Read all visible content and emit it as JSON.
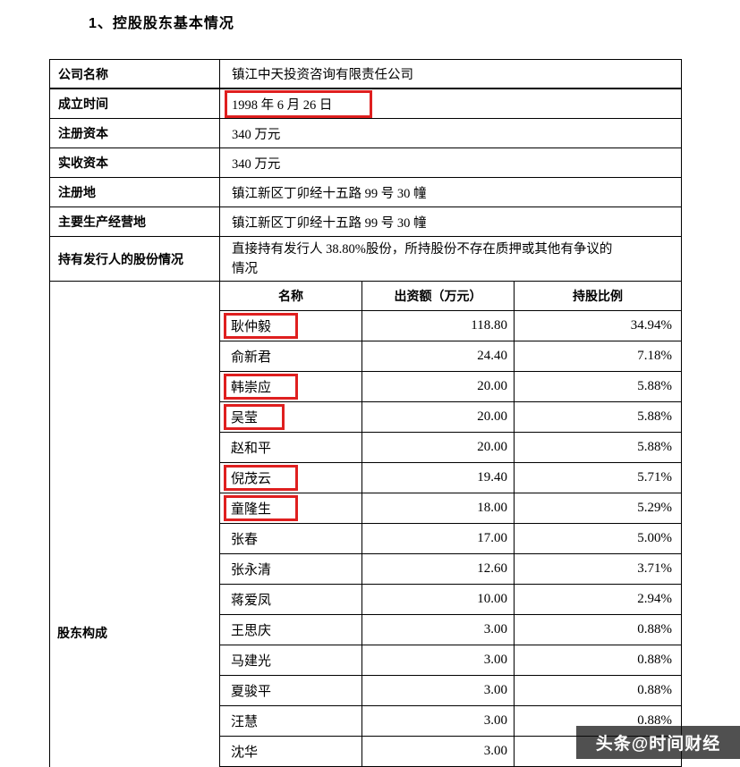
{
  "page": {
    "title": "1、控股股东基本情况"
  },
  "info_rows": [
    {
      "label": "公司名称",
      "value": "镇江中天投资咨询有限责任公司",
      "highlight": false
    },
    {
      "label": "成立时间",
      "value": "1998 年 6 月 26 日",
      "highlight": true
    },
    {
      "label": "注册资本",
      "value": "340 万元",
      "highlight": false
    },
    {
      "label": "实收资本",
      "value": "340 万元",
      "highlight": false
    },
    {
      "label": "注册地",
      "value": "镇江新区丁卯经十五路 99 号 30 幢",
      "highlight": false
    },
    {
      "label": "主要生产经营地",
      "value": "镇江新区丁卯经十五路 99 号 30 幢",
      "highlight": false
    },
    {
      "label": "持有发行人的股份情况",
      "value": "直接持有发行人 38.80%股份，所持股份不存在质押或其他有争议的情况",
      "highlight": false
    }
  ],
  "shareholder_table": {
    "row_label": "股东构成",
    "headers": [
      "名称",
      "出资额（万元）",
      "持股比例"
    ],
    "rows": [
      {
        "name": "耿仲毅",
        "amount": "118.80",
        "ratio": "34.94%",
        "highlight": true
      },
      {
        "name": "俞新君",
        "amount": "24.40",
        "ratio": "7.18%",
        "highlight": false
      },
      {
        "name": "韩崇应",
        "amount": "20.00",
        "ratio": "5.88%",
        "highlight": true
      },
      {
        "name": "吴莹",
        "amount": "20.00",
        "ratio": "5.88%",
        "highlight": true
      },
      {
        "name": "赵和平",
        "amount": "20.00",
        "ratio": "5.88%",
        "highlight": false
      },
      {
        "name": "倪茂云",
        "amount": "19.40",
        "ratio": "5.71%",
        "highlight": true
      },
      {
        "name": "童隆生",
        "amount": "18.00",
        "ratio": "5.29%",
        "highlight": true
      },
      {
        "name": "张春",
        "amount": "17.00",
        "ratio": "5.00%",
        "highlight": false
      },
      {
        "name": "张永清",
        "amount": "12.60",
        "ratio": "3.71%",
        "highlight": false
      },
      {
        "name": "蒋爱凤",
        "amount": "10.00",
        "ratio": "2.94%",
        "highlight": false
      },
      {
        "name": "王思庆",
        "amount": "3.00",
        "ratio": "0.88%",
        "highlight": false
      },
      {
        "name": "马建光",
        "amount": "3.00",
        "ratio": "0.88%",
        "highlight": false
      },
      {
        "name": "夏骏平",
        "amount": "3.00",
        "ratio": "0.88%",
        "highlight": false
      },
      {
        "name": "汪慧",
        "amount": "3.00",
        "ratio": "0.88%",
        "highlight": false
      },
      {
        "name": "沈华",
        "amount": "3.00",
        "ratio": "",
        "highlight": false
      }
    ]
  },
  "watermark": {
    "text": "头条@时间财经"
  }
}
